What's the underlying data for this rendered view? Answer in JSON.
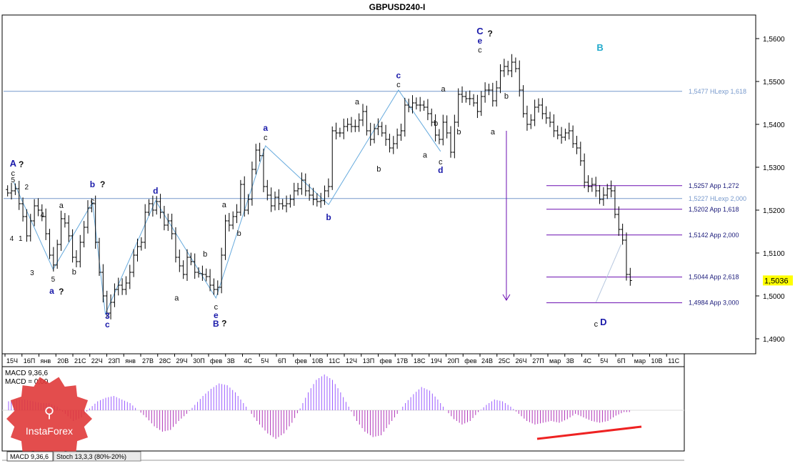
{
  "chart_data": [
    {
      "type": "candlestick",
      "title": "GBPUSD240-I",
      "subtitle": "",
      "xlabel": "",
      "ylabel": "",
      "ylim": [
        1.4865,
        1.5655
      ],
      "grid": false,
      "y_ticks": [
        "1,4900",
        "1,5000",
        "1,5100",
        "1,5200",
        "1,5300",
        "1,5400",
        "1,5500",
        "1,5600"
      ],
      "y_tick_values": [
        1.49,
        1.5,
        1.51,
        1.52,
        1.53,
        1.54,
        1.55,
        1.56
      ],
      "x_ticks": [
        "15Ч",
        "16П",
        "янв",
        "20В",
        "21С",
        "22Ч",
        "23П",
        "янв",
        "27В",
        "28С",
        "29Ч",
        "30П",
        "фев",
        "3В",
        "4С",
        "5Ч",
        "6П",
        "фев",
        "10В",
        "11С",
        "12Ч",
        "13П",
        "фев",
        "17В",
        "18С",
        "19Ч",
        "20П",
        "фев",
        "24В",
        "25С",
        "26Ч",
        "27П",
        "мар",
        "3В",
        "4С",
        "5Ч",
        "6П",
        "мар",
        "10В",
        "11С"
      ],
      "current_price": {
        "label": "1,5036",
        "value": 1.5036,
        "color": "#ffff00"
      },
      "price_path": [
        1.524,
        1.5245,
        1.525,
        1.5215,
        1.5185,
        1.514,
        1.5175,
        1.521,
        1.52,
        1.5185,
        1.5145,
        1.5095,
        1.5072,
        1.512,
        1.518,
        1.517,
        1.514,
        1.509,
        1.508,
        1.5125,
        1.516,
        1.5205,
        1.5215,
        1.5125,
        1.5055,
        1.5,
        1.496,
        1.4985,
        1.5015,
        1.5025,
        1.5015,
        1.503,
        1.5055,
        1.5095,
        1.5115,
        1.5125,
        1.5195,
        1.5215,
        1.52,
        1.522,
        1.5195,
        1.5165,
        1.5175,
        1.5145,
        1.509,
        1.507,
        1.505,
        1.509,
        1.508,
        1.5055,
        1.5052,
        1.505,
        1.5045,
        1.5025,
        1.5015,
        1.502,
        1.5095,
        1.5175,
        1.5165,
        1.5185,
        1.5195,
        1.526,
        1.52,
        1.5225,
        1.5295,
        1.534,
        1.5327,
        1.5255,
        1.5235,
        1.521,
        1.523,
        1.5215,
        1.521,
        1.5215,
        1.5225,
        1.5245,
        1.525,
        1.527,
        1.5245,
        1.5235,
        1.5225,
        1.522,
        1.5222,
        1.5245,
        1.5255,
        1.5385,
        1.538,
        1.538,
        1.5395,
        1.54,
        1.5395,
        1.5395,
        1.541,
        1.543,
        1.5385,
        1.5365,
        1.539,
        1.5395,
        1.538,
        1.5365,
        1.5345,
        1.5355,
        1.5375,
        1.5385,
        1.5445,
        1.544,
        1.545,
        1.5445,
        1.5445,
        1.544,
        1.5425,
        1.5405,
        1.5375,
        1.5365,
        1.5405,
        1.538,
        1.5335,
        1.5405,
        1.547,
        1.5465,
        1.546,
        1.546,
        1.545,
        1.543,
        1.5465,
        1.548,
        1.548,
        1.5455,
        1.5485,
        1.5525,
        1.5535,
        1.5525,
        1.5545,
        1.553,
        1.548,
        1.5425,
        1.54,
        1.541,
        1.544,
        1.5445,
        1.5425,
        1.5415,
        1.5405,
        1.5385,
        1.5375,
        1.537,
        1.538,
        1.5385,
        1.5355,
        1.5345,
        1.5315,
        1.5265,
        1.5255,
        1.526,
        1.5245,
        1.5225,
        1.5235,
        1.525,
        1.5245,
        1.519,
        1.5155,
        1.513,
        1.505,
        1.5036
      ],
      "horizontal_levels": [
        {
          "label": "1,5477 HLexp 1,618",
          "value": 1.5477,
          "color": "#7799cc",
          "start_frac": 0.0
        },
        {
          "label": "1,5257 App 1,272",
          "value": 1.5257,
          "color": "#6a0db0",
          "start_frac": 0.8
        },
        {
          "label": "1,5227 HLexp 2,000",
          "value": 1.5227,
          "color": "#7799cc",
          "start_frac": 0.0
        },
        {
          "label": "1,5202 App 1,618",
          "value": 1.5202,
          "color": "#6a0db0",
          "start_frac": 0.8
        },
        {
          "label": "1,5142 App 2,000",
          "value": 1.5142,
          "color": "#6a0db0",
          "start_frac": 0.8
        },
        {
          "label": "1,5044 App 2,618",
          "value": 1.5044,
          "color": "#6a0db0",
          "start_frac": 0.8
        },
        {
          "label": "1,4984 App 3,000",
          "value": 1.4984,
          "color": "#6a0db0",
          "start_frac": 0.8
        }
      ],
      "wave_labels": [
        {
          "text": "A",
          "fx": 0.014,
          "price": 1.5308,
          "color": "#1a1aaa",
          "size": 13,
          "bold": true
        },
        {
          "text": "?",
          "fx": 0.026,
          "price": 1.5307,
          "color": "#111111",
          "size": 12,
          "bold": true
        },
        {
          "text": "c",
          "fx": 0.014,
          "price": 1.5287,
          "color": "#111111",
          "size": 11,
          "bold": false
        },
        {
          "text": "5",
          "fx": 0.014,
          "price": 1.5272,
          "color": "#111111",
          "size": 10,
          "bold": false
        },
        {
          "text": "2",
          "fx": 0.034,
          "price": 1.5255,
          "color": "#111111",
          "size": 10,
          "bold": false
        },
        {
          "text": "4",
          "fx": 0.057,
          "price": 1.519,
          "color": "#111111",
          "size": 10,
          "bold": false
        },
        {
          "text": "4",
          "fx": 0.012,
          "price": 1.5135,
          "color": "#111111",
          "size": 10,
          "bold": false
        },
        {
          "text": "1",
          "fx": 0.025,
          "price": 1.5135,
          "color": "#111111",
          "size": 10,
          "bold": false
        },
        {
          "text": "3",
          "fx": 0.042,
          "price": 1.5055,
          "color": "#111111",
          "size": 10,
          "bold": false
        },
        {
          "text": "5",
          "fx": 0.073,
          "price": 1.504,
          "color": "#111111",
          "size": 10,
          "bold": false
        },
        {
          "text": "a",
          "fx": 0.071,
          "price": 1.5012,
          "color": "#1a1aaa",
          "size": 12,
          "bold": true
        },
        {
          "text": "?",
          "fx": 0.085,
          "price": 1.501,
          "color": "#111111",
          "size": 12,
          "bold": true
        },
        {
          "text": "a",
          "fx": 0.085,
          "price": 1.5212,
          "color": "#111111",
          "size": 11,
          "bold": false
        },
        {
          "text": "b",
          "fx": 0.104,
          "price": 1.5057,
          "color": "#111111",
          "size": 11,
          "bold": false
        },
        {
          "text": "b",
          "fx": 0.131,
          "price": 1.526,
          "color": "#1a1aaa",
          "size": 12,
          "bold": true
        },
        {
          "text": "?",
          "fx": 0.146,
          "price": 1.526,
          "color": "#111111",
          "size": 12,
          "bold": true
        },
        {
          "text": "c",
          "fx": 0.131,
          "price": 1.5222,
          "color": "#111111",
          "size": 11,
          "bold": false
        },
        {
          "text": "3",
          "fx": 0.153,
          "price": 1.4953,
          "color": "#1a1aaa",
          "size": 12,
          "bold": true
        },
        {
          "text": "c",
          "fx": 0.153,
          "price": 1.4933,
          "color": "#1a1aaa",
          "size": 12,
          "bold": true
        },
        {
          "text": "d",
          "fx": 0.224,
          "price": 1.5245,
          "color": "#1a1aaa",
          "size": 12,
          "bold": true
        },
        {
          "text": "a",
          "fx": 0.255,
          "price": 1.4996,
          "color": "#111111",
          "size": 11,
          "bold": false
        },
        {
          "text": "b",
          "fx": 0.297,
          "price": 1.5098,
          "color": "#111111",
          "size": 11,
          "bold": false
        },
        {
          "text": "c",
          "fx": 0.313,
          "price": 1.4975,
          "color": "#111111",
          "size": 11,
          "bold": false
        },
        {
          "text": "e",
          "fx": 0.313,
          "price": 1.4955,
          "color": "#1a1aaa",
          "size": 12,
          "bold": true
        },
        {
          "text": "B",
          "fx": 0.313,
          "price": 1.4935,
          "color": "#1a1aaa",
          "size": 12,
          "bold": true
        },
        {
          "text": "?",
          "fx": 0.325,
          "price": 1.4936,
          "color": "#111111",
          "size": 12,
          "bold": true
        },
        {
          "text": "a",
          "fx": 0.325,
          "price": 1.5213,
          "color": "#111111",
          "size": 11,
          "bold": false
        },
        {
          "text": "b",
          "fx": 0.347,
          "price": 1.5147,
          "color": "#111111",
          "size": 11,
          "bold": false
        },
        {
          "text": "a",
          "fx": 0.386,
          "price": 1.5392,
          "color": "#1a1aaa",
          "size": 12,
          "bold": true
        },
        {
          "text": "c",
          "fx": 0.386,
          "price": 1.537,
          "color": "#111111",
          "size": 11,
          "bold": false
        },
        {
          "text": "b",
          "fx": 0.479,
          "price": 1.5183,
          "color": "#1a1aaa",
          "size": 12,
          "bold": true
        },
        {
          "text": "a",
          "fx": 0.521,
          "price": 1.5453,
          "color": "#111111",
          "size": 11,
          "bold": false
        },
        {
          "text": "b",
          "fx": 0.553,
          "price": 1.5297,
          "color": "#111111",
          "size": 11,
          "bold": false
        },
        {
          "text": "c",
          "fx": 0.582,
          "price": 1.5514,
          "color": "#1a1aaa",
          "size": 12,
          "bold": true
        },
        {
          "text": "c",
          "fx": 0.582,
          "price": 1.5493,
          "color": "#111111",
          "size": 11,
          "bold": false
        },
        {
          "text": "a",
          "fx": 0.621,
          "price": 1.5329,
          "color": "#111111",
          "size": 11,
          "bold": false
        },
        {
          "text": "b",
          "fx": 0.637,
          "price": 1.5403,
          "color": "#111111",
          "size": 11,
          "bold": false
        },
        {
          "text": "b",
          "fx": 0.671,
          "price": 1.5383,
          "color": "#111111",
          "size": 11,
          "bold": false
        },
        {
          "text": "a",
          "fx": 0.648,
          "price": 1.5483,
          "color": "#111111",
          "size": 11,
          "bold": false
        },
        {
          "text": "c",
          "fx": 0.644,
          "price": 1.5313,
          "color": "#111111",
          "size": 11,
          "bold": false
        },
        {
          "text": "d",
          "fx": 0.644,
          "price": 1.5293,
          "color": "#1a1aaa",
          "size": 12,
          "bold": true
        },
        {
          "text": "C",
          "fx": 0.702,
          "price": 1.5617,
          "color": "#1a1aaa",
          "size": 13,
          "bold": true
        },
        {
          "text": "?",
          "fx": 0.717,
          "price": 1.5612,
          "color": "#111111",
          "size": 12,
          "bold": true
        },
        {
          "text": "e",
          "fx": 0.702,
          "price": 1.5595,
          "color": "#1a1aaa",
          "size": 12,
          "bold": true
        },
        {
          "text": "c",
          "fx": 0.702,
          "price": 1.5574,
          "color": "#111111",
          "size": 11,
          "bold": false
        },
        {
          "text": "b",
          "fx": 0.741,
          "price": 1.5467,
          "color": "#111111",
          "size": 11,
          "bold": false
        },
        {
          "text": "a",
          "fx": 0.721,
          "price": 1.5383,
          "color": "#111111",
          "size": 11,
          "bold": false
        },
        {
          "text": "B",
          "fx": 0.879,
          "price": 1.5578,
          "color": "#22aacc",
          "size": 13,
          "bold": true
        },
        {
          "text": "c",
          "fx": 0.873,
          "price": 1.4935,
          "color": "#111111",
          "size": 11,
          "bold": false
        },
        {
          "text": "D",
          "fx": 0.884,
          "price": 1.4938,
          "color": "#1a1aaa",
          "size": 13,
          "bold": true
        }
      ],
      "wave_paths": [
        {
          "color": "#66aadd",
          "points": [
            [
              0.015,
              1.5265
            ],
            [
              0.073,
              1.5062
            ],
            [
              0.131,
              1.5218
            ],
            [
              0.15,
              1.4958
            ],
            [
              0.224,
              1.5222
            ],
            [
              0.313,
              1.4995
            ],
            [
              0.386,
              1.535
            ],
            [
              0.479,
              1.5213
            ],
            [
              0.582,
              1.548
            ],
            [
              0.644,
              1.5337
            ]
          ]
        },
        {
          "color": "#b8c8e0",
          "points": [
            [
              0.873,
              1.4985
            ],
            [
              0.91,
              1.512
            ]
          ]
        },
        {
          "color": "#6a0db0",
          "points": [
            [
              0.741,
              1.5385
            ],
            [
              0.741,
              1.499
            ]
          ]
        }
      ]
    },
    {
      "type": "bar",
      "title": "MACD 9,36,6",
      "subtitle": "MACD = 0,00",
      "series": [
        {
          "name": "MACD",
          "values": [
            0.05,
            0.06,
            0.06,
            0.05,
            0.04,
            0.04,
            0.02,
            -0.02,
            -0.06,
            -0.04,
            0.01,
            0.05,
            0.07,
            0.08,
            0.06,
            0.04,
            0.0,
            -0.04,
            -0.09,
            -0.12,
            -0.11,
            -0.06,
            -0.02,
            0.03,
            0.08,
            0.12,
            0.15,
            0.14,
            0.1,
            0.04,
            -0.02,
            -0.08,
            -0.13,
            -0.16,
            -0.13,
            -0.07,
            0.01,
            0.1,
            0.17,
            0.2,
            0.17,
            0.1,
            0.02,
            -0.06,
            -0.12,
            -0.15,
            -0.14,
            -0.08,
            -0.02,
            0.04,
            0.09,
            0.13,
            0.11,
            0.06,
            0.0,
            -0.05,
            -0.08,
            -0.06,
            -0.01,
            0.03,
            0.06,
            0.05,
            0.02,
            -0.02,
            -0.06,
            -0.08,
            -0.07,
            -0.06,
            -0.07,
            -0.05,
            -0.02,
            -0.04,
            -0.06,
            -0.07,
            -0.06,
            -0.03,
            -0.01
          ]
        }
      ],
      "ylim": [
        -0.22,
        0.22
      ]
    }
  ],
  "ui": {
    "tabs": [
      {
        "label": "MACD 9,36,6",
        "active": true
      },
      {
        "label": "Stoch 13,3,3 (80%-20%)",
        "active": false
      }
    ],
    "watermark": "InstaForex"
  },
  "colors": {
    "candles": "#000000",
    "macd_bar": "#b035b8",
    "macd_positive": "#9b5cff",
    "divergence": "#ee2222",
    "axis": "#000000",
    "watermark": "#e03a3a"
  }
}
